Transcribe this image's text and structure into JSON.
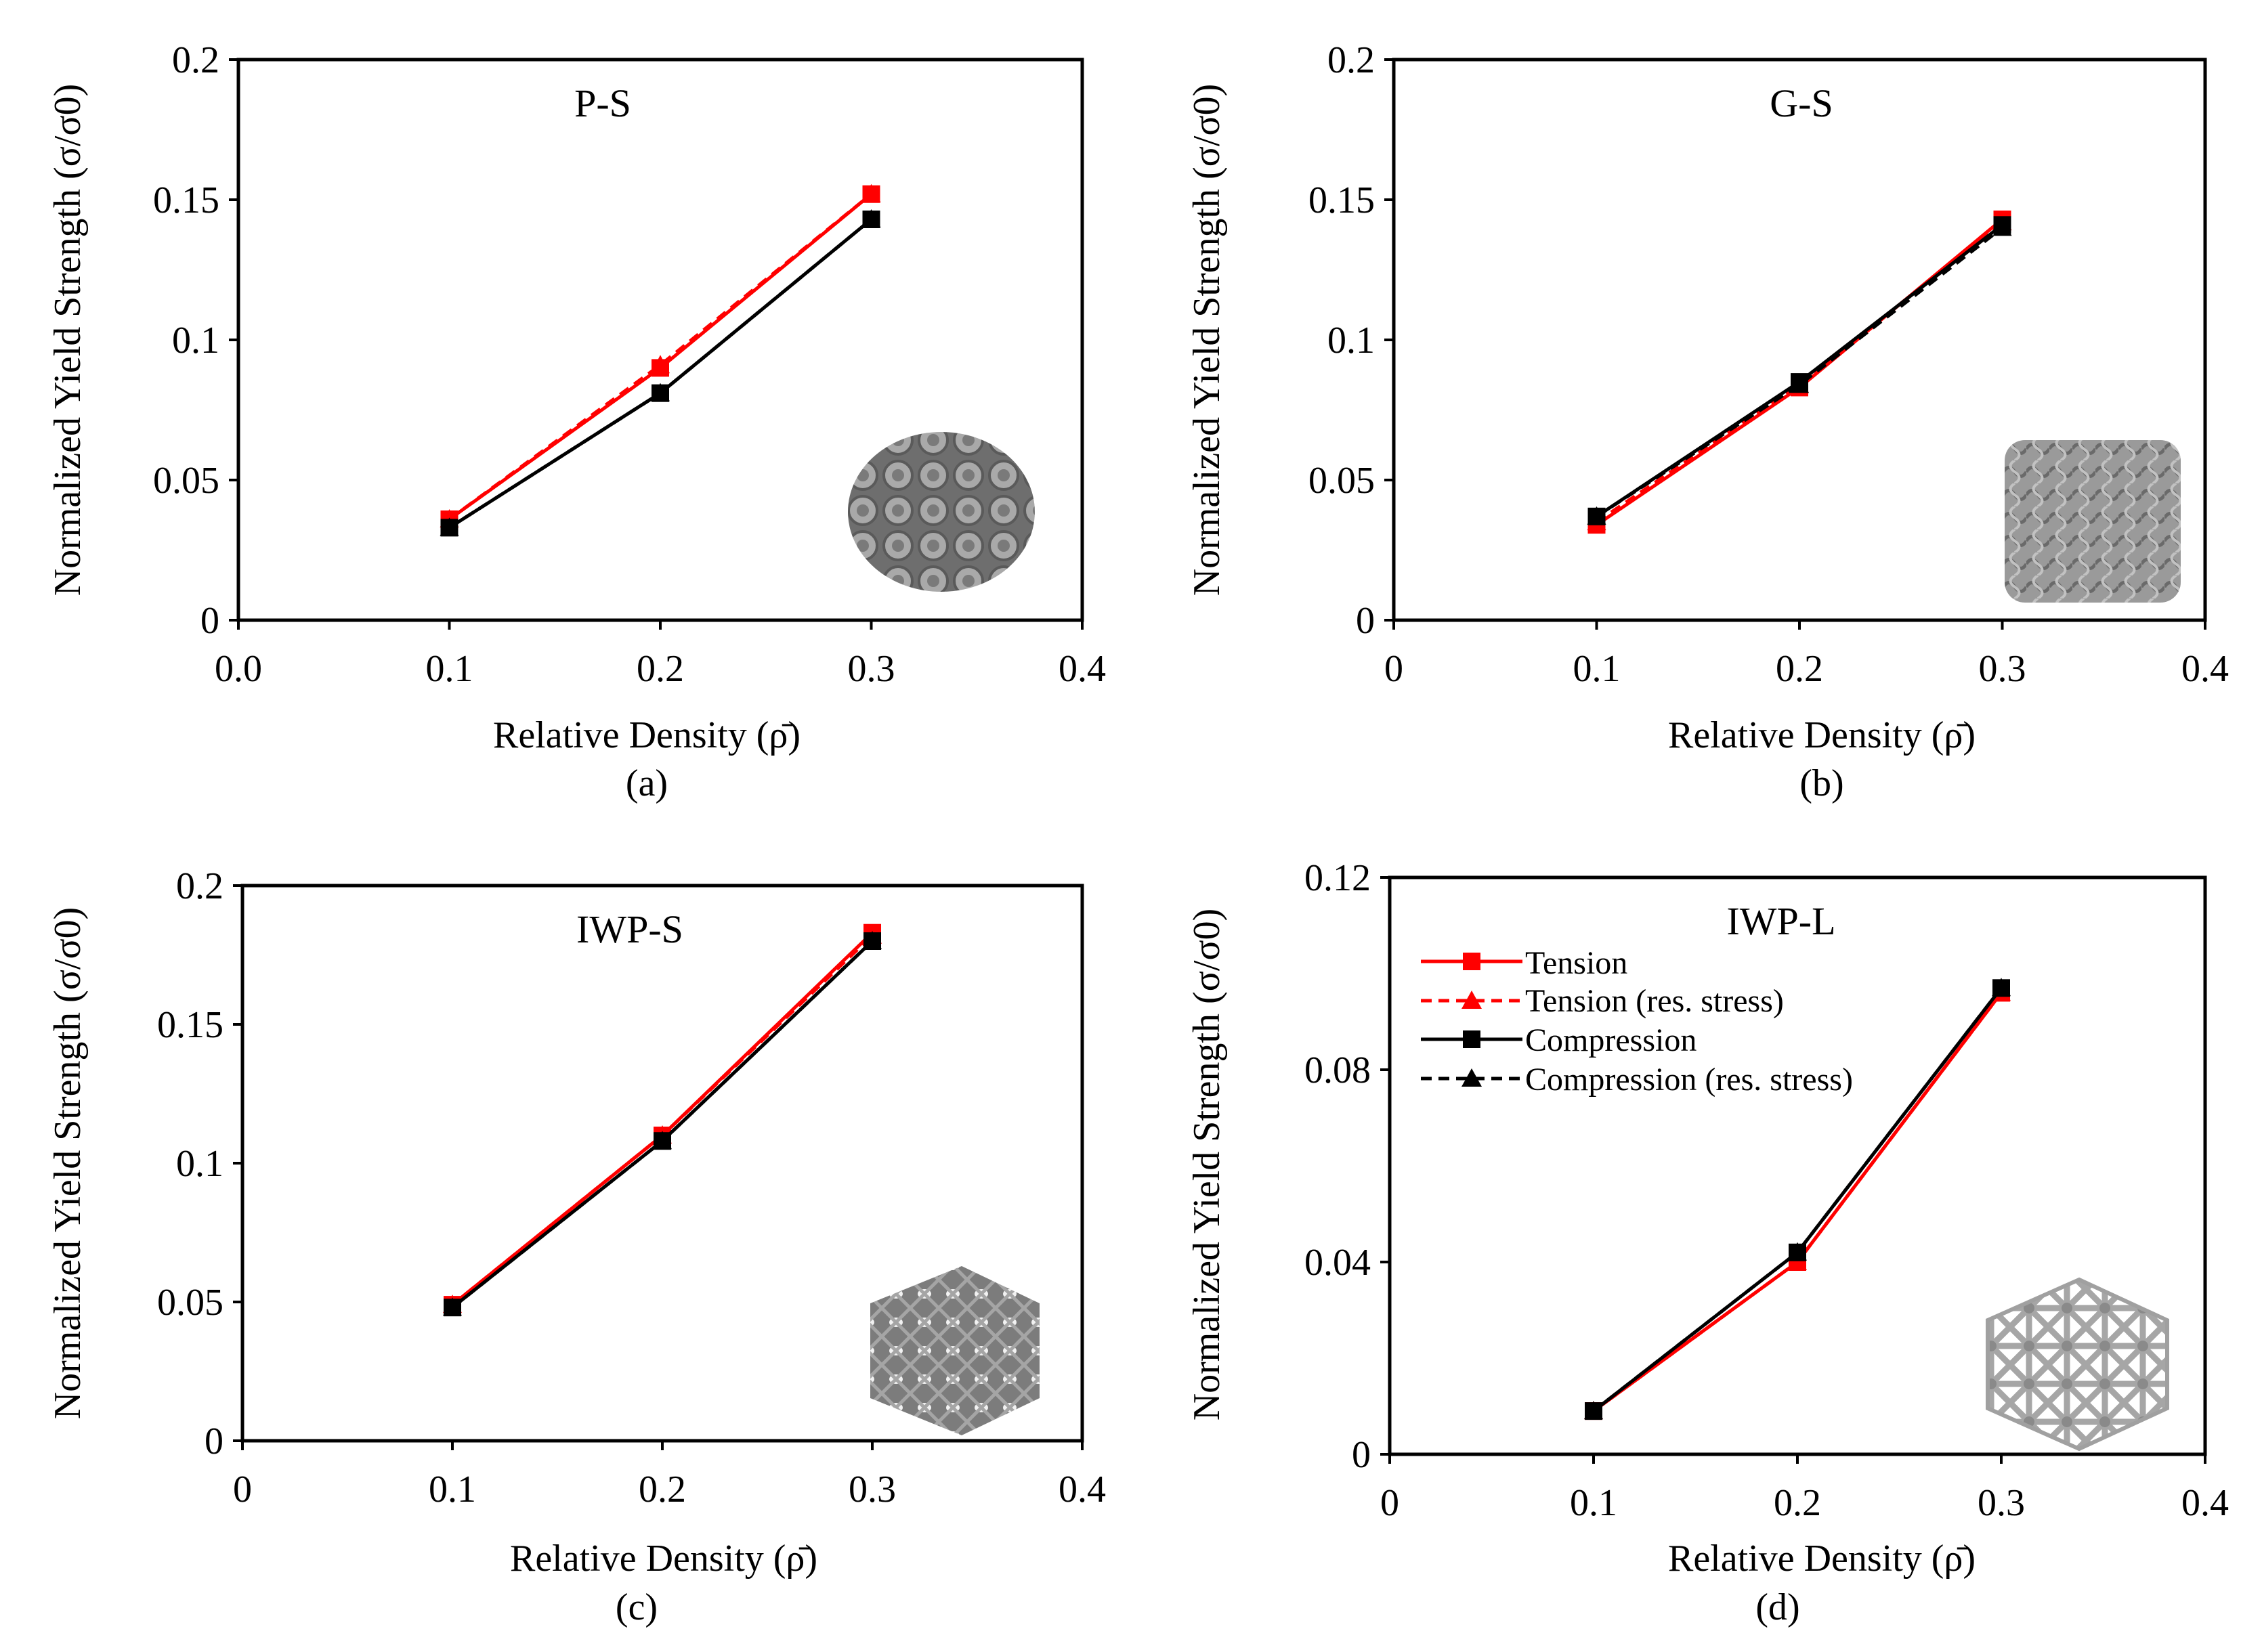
{
  "colors": {
    "tension": "#ff0000",
    "compression": "#000000",
    "lattice": "#8c8c8c"
  },
  "legend": {
    "entries": [
      {
        "label": "Tension",
        "color": "#ff0000",
        "dashed": false,
        "marker": "square"
      },
      {
        "label": "Tension (res. stress)",
        "color": "#ff0000",
        "dashed": true,
        "marker": "triangle"
      },
      {
        "label": "Compression",
        "color": "#000000",
        "dashed": false,
        "marker": "square"
      },
      {
        "label": "Compression (res. stress)",
        "color": "#000000",
        "dashed": true,
        "marker": "triangle"
      }
    ]
  },
  "chart_data": [
    {
      "type": "line",
      "panel": "(a)",
      "title": "P-S",
      "xlabel": "Relative Density (ρ̄)",
      "ylabel": "Normalized Yield Strength (σ/σ0)",
      "xlim": [
        0,
        0.4
      ],
      "ylim": [
        0,
        0.2
      ],
      "xticks": [
        "0.0",
        "0.1",
        "0.2",
        "0.3",
        "0.4"
      ],
      "yticks": [
        "0",
        "0.05",
        "0.1",
        "0.15",
        "0.2"
      ],
      "x": [
        0.1,
        0.2,
        0.3
      ],
      "series": [
        {
          "name": "Tension",
          "values": [
            0.036,
            0.09,
            0.152
          ]
        },
        {
          "name": "Tension (res. stress)",
          "values": [
            0.036,
            0.091,
            0.152
          ]
        },
        {
          "name": "Compression",
          "values": [
            0.033,
            0.081,
            0.143
          ]
        },
        {
          "name": "Compression (res. stress)",
          "values": [
            0.033,
            0.081,
            0.143
          ]
        }
      ],
      "inset": "P-S lattice"
    },
    {
      "type": "line",
      "panel": "(b)",
      "title": "G-S",
      "xlabel": "Relative Density (ρ̄)",
      "ylabel": "Normalized Yield Strength (σ/σ0)",
      "xlim": [
        0,
        0.4
      ],
      "ylim": [
        0,
        0.2
      ],
      "xticks": [
        "0",
        "0.1",
        "0.2",
        "0.3",
        "0.4"
      ],
      "yticks": [
        "0",
        "0.05",
        "0.1",
        "0.15",
        "0.2"
      ],
      "x": [
        0.1,
        0.2,
        0.3
      ],
      "series": [
        {
          "name": "Tension",
          "values": [
            0.034,
            0.083,
            0.143
          ]
        },
        {
          "name": "Tension (res. stress)",
          "values": [
            0.035,
            0.084,
            0.142
          ]
        },
        {
          "name": "Compression",
          "values": [
            0.037,
            0.085,
            0.141
          ]
        },
        {
          "name": "Compression (res. stress)",
          "values": [
            0.037,
            0.084,
            0.14
          ]
        }
      ],
      "inset": "G-S lattice"
    },
    {
      "type": "line",
      "panel": "(c)",
      "title": "IWP-S",
      "xlabel": "Relative Density (ρ̄)",
      "ylabel": "Normalized Yield Strength (σ/σ0)",
      "xlim": [
        0,
        0.4
      ],
      "ylim": [
        0,
        0.2
      ],
      "xticks": [
        "0",
        "0.1",
        "0.2",
        "0.3",
        "0.4"
      ],
      "yticks": [
        "0",
        "0.05",
        "0.1",
        "0.15",
        "0.2"
      ],
      "x": [
        0.1,
        0.2,
        0.3
      ],
      "series": [
        {
          "name": "Tension",
          "values": [
            0.049,
            0.11,
            0.183
          ]
        },
        {
          "name": "Tension (res. stress)",
          "values": [
            0.049,
            0.11,
            0.182
          ]
        },
        {
          "name": "Compression",
          "values": [
            0.048,
            0.108,
            0.18
          ]
        },
        {
          "name": "Compression (res. stress)",
          "values": [
            0.048,
            0.108,
            0.18
          ]
        }
      ],
      "inset": "IWP-S lattice"
    },
    {
      "type": "line",
      "panel": "(d)",
      "title": "IWP-L",
      "xlabel": "Relative Density (ρ̄)",
      "ylabel": "Normalized Yield Strength (σ/σ0)",
      "xlim": [
        0,
        0.4
      ],
      "ylim": [
        0,
        0.12
      ],
      "xticks": [
        "0",
        "0.1",
        "0.2",
        "0.3",
        "0.4"
      ],
      "yticks": [
        "0",
        "0.04",
        "0.08",
        "0.12"
      ],
      "x": [
        0.1,
        0.2,
        0.3
      ],
      "series": [
        {
          "name": "Tension",
          "values": [
            0.009,
            0.04,
            0.096
          ]
        },
        {
          "name": "Tension (res. stress)",
          "values": [
            0.009,
            0.04,
            0.096
          ]
        },
        {
          "name": "Compression",
          "values": [
            0.009,
            0.042,
            0.097
          ]
        },
        {
          "name": "Compression (res. stress)",
          "values": [
            0.009,
            0.042,
            0.097
          ]
        }
      ],
      "inset": "IWP-L lattice",
      "legend": "top-left"
    }
  ]
}
